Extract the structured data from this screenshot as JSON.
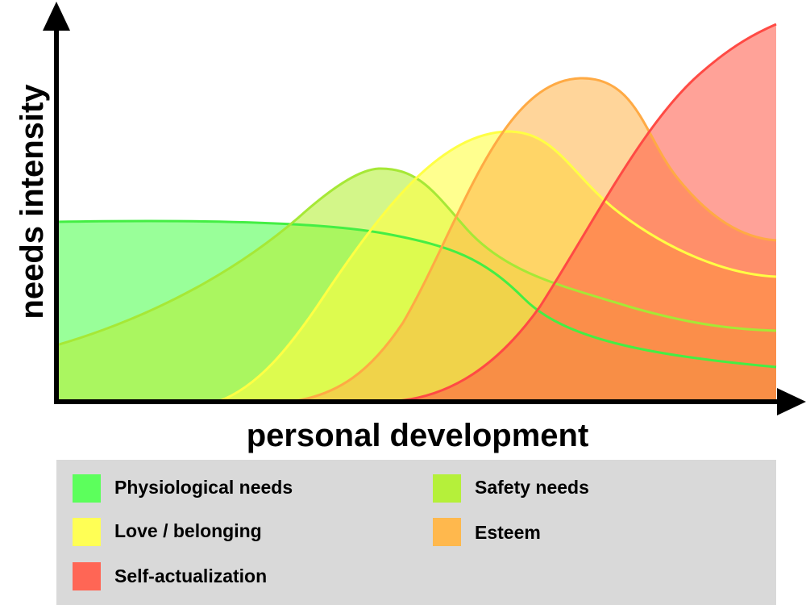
{
  "axes": {
    "y_label": "needs intensity",
    "x_label": "personal development"
  },
  "legend": {
    "items": [
      {
        "label": "Physiological needs"
      },
      {
        "label": "Safety needs"
      },
      {
        "label": "Love / belonging"
      },
      {
        "label": "Esteem"
      },
      {
        "label": "Self-actualization"
      }
    ]
  }
}
